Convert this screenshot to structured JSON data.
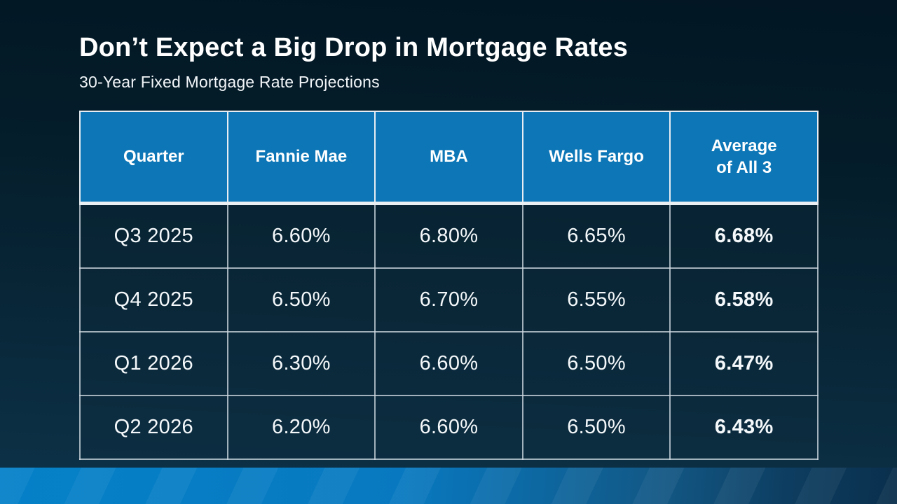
{
  "slide": {
    "title": "Don’t Expect a Big Drop in Mortgage Rates",
    "subtitle": "30-Year Fixed Mortgage Rate Projections"
  },
  "table": {
    "headers": [
      "Quarter",
      "Fannie Mae",
      "MBA",
      "Wells Fargo",
      "Average\nof All 3"
    ],
    "rows": [
      [
        "Q3 2025",
        "6.60%",
        "6.80%",
        "6.65%",
        "6.68%"
      ],
      [
        "Q4 2025",
        "6.50%",
        "6.70%",
        "6.55%",
        "6.58%"
      ],
      [
        "Q1 2026",
        "6.30%",
        "6.60%",
        "6.50%",
        "6.47%"
      ],
      [
        "Q2 2026",
        "6.20%",
        "6.60%",
        "6.50%",
        "6.43%"
      ]
    ]
  },
  "colors": {
    "background_top": "#021623",
    "background_bottom": "#0d3148",
    "header_blue": "#0c76b6",
    "accent_bar_left": "#0581c8",
    "accent_bar_right": "#0a2f4c",
    "text_white": "#ffffff",
    "cell_border": "#cdd7df"
  },
  "chart_data": {
    "type": "table",
    "title": "Don’t Expect a Big Drop in Mortgage Rates",
    "subtitle": "30-Year Fixed Mortgage Rate Projections",
    "columns": [
      "Quarter",
      "Fannie Mae",
      "MBA",
      "Wells Fargo",
      "Average of All 3"
    ],
    "rows": [
      [
        "Q3 2025",
        "6.60%",
        "6.80%",
        "6.65%",
        "6.68%"
      ],
      [
        "Q4 2025",
        "6.50%",
        "6.70%",
        "6.55%",
        "6.58%"
      ],
      [
        "Q1 2026",
        "6.30%",
        "6.60%",
        "6.50%",
        "6.47%"
      ],
      [
        "Q2 2026",
        "6.20%",
        "6.60%",
        "6.50%",
        "6.43%"
      ]
    ],
    "categories": [
      "Q3 2025",
      "Q4 2025",
      "Q1 2026",
      "Q2 2026"
    ],
    "series": [
      {
        "name": "Fannie Mae",
        "values": [
          6.6,
          6.5,
          6.3,
          6.2
        ]
      },
      {
        "name": "MBA",
        "values": [
          6.8,
          6.7,
          6.6,
          6.6
        ]
      },
      {
        "name": "Wells Fargo",
        "values": [
          6.65,
          6.55,
          6.5,
          6.5
        ]
      },
      {
        "name": "Average of All 3",
        "values": [
          6.68,
          6.58,
          6.47,
          6.43
        ]
      }
    ],
    "units": "percent",
    "notes": "30-year fixed mortgage rate projections by quarter"
  }
}
